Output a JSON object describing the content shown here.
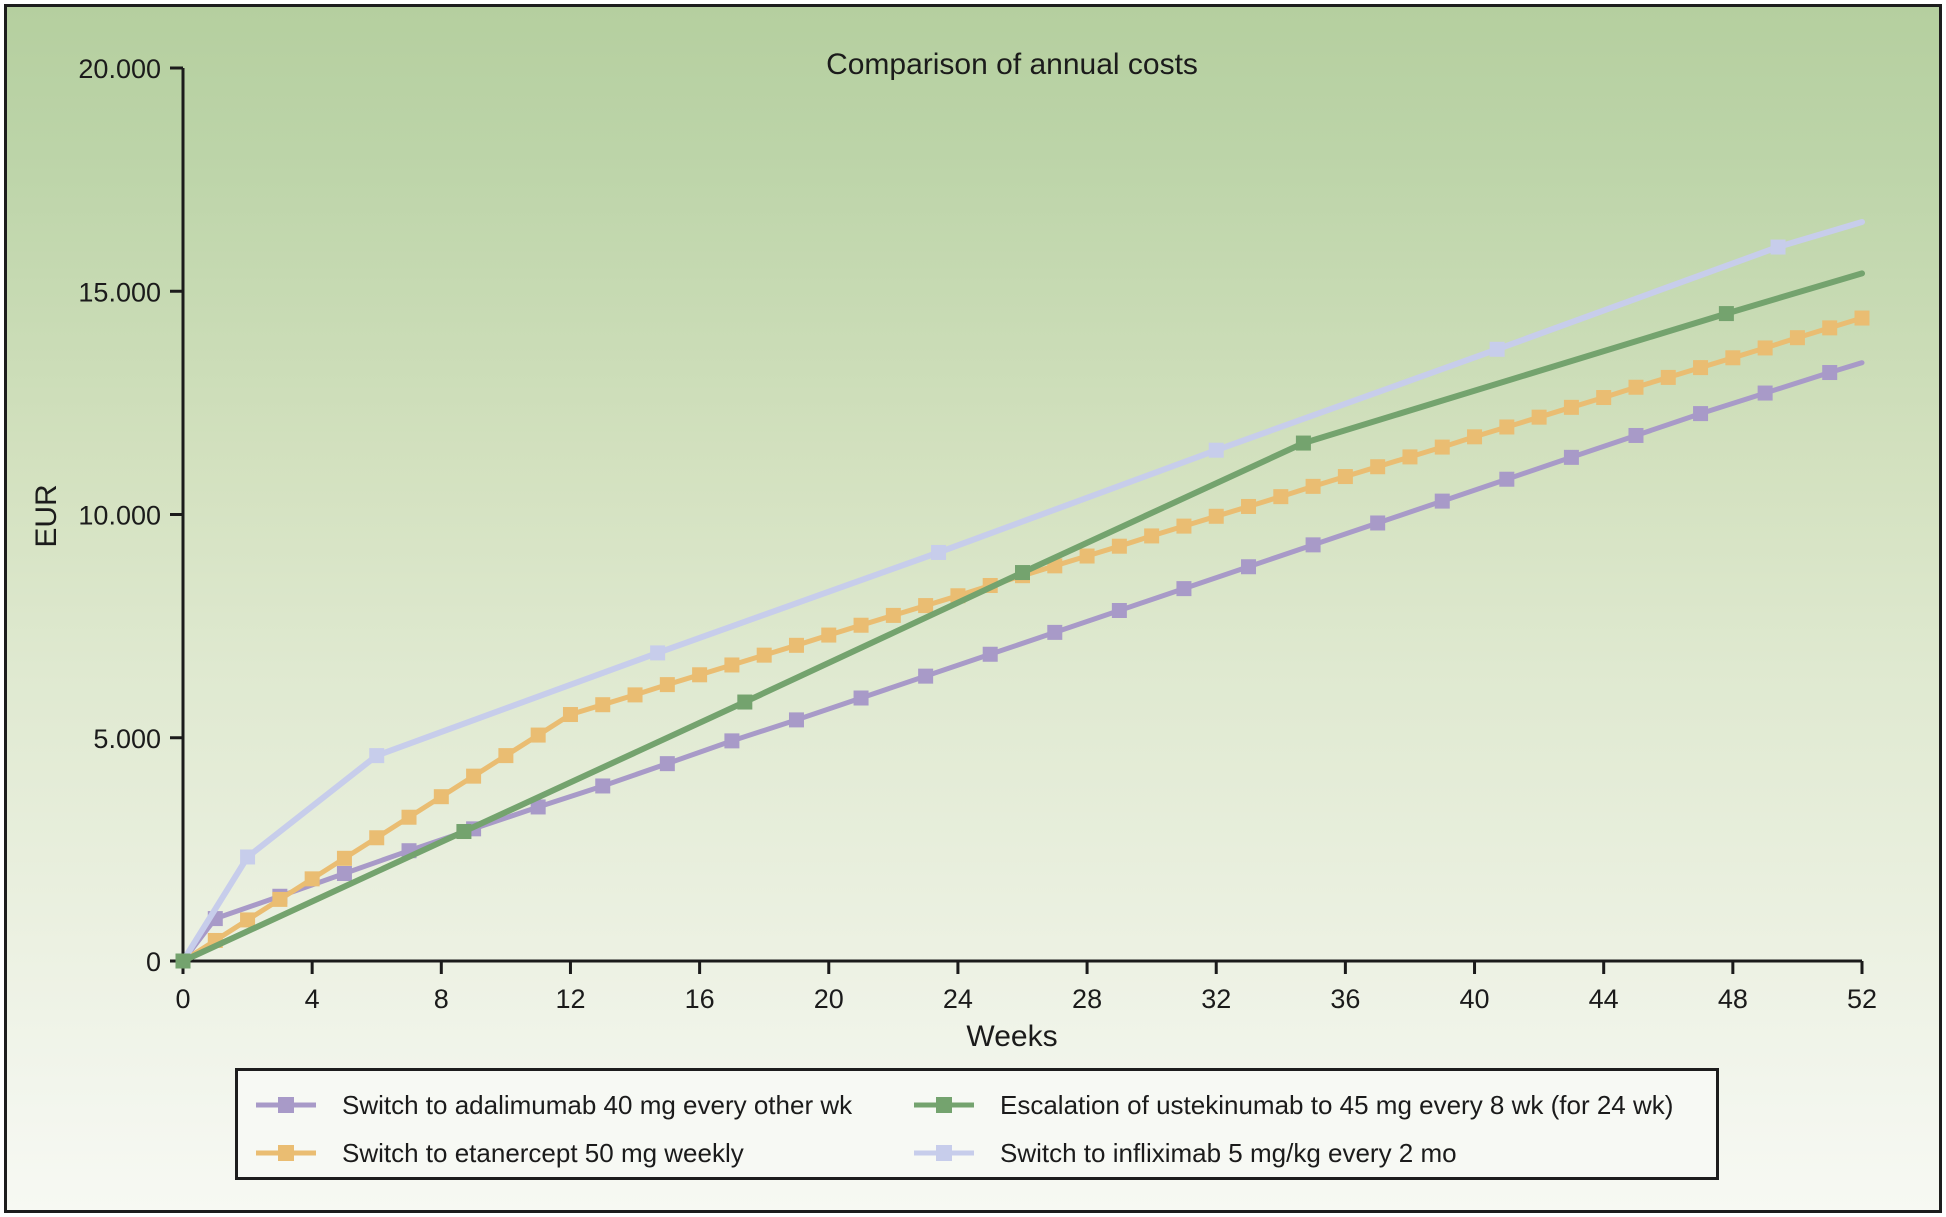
{
  "figure": {
    "title": "Comparison of annual costs",
    "xlabel": "Weeks",
    "ylabel": "EUR"
  },
  "colors": {
    "axis": "#1b1b1b",
    "text": "#1b1b1b",
    "frame_border": "#1d1d1d",
    "legend_background": "#f7f9f4",
    "background_top": "#b5cf9f",
    "background_bottom": "#f7f9f3",
    "adalimumab": "#a89ac8",
    "etanercept": "#eabd72",
    "ustekinumab": "#74a36e",
    "infliximab": "#c7cdeb"
  },
  "chart_data": {
    "type": "line",
    "title": "Comparison of annual costs",
    "xlabel": "Weeks",
    "ylabel": "EUR",
    "xlim": [
      0,
      52
    ],
    "ylim": [
      0,
      20000
    ],
    "grid": false,
    "legend_position": "bottom",
    "x_ticks": {
      "values": [
        0,
        4,
        8,
        12,
        16,
        20,
        24,
        28,
        32,
        36,
        40,
        44,
        48,
        52
      ],
      "labels": [
        "0",
        "4",
        "8",
        "12",
        "16",
        "20",
        "24",
        "28",
        "32",
        "36",
        "40",
        "44",
        "48",
        "52"
      ]
    },
    "y_ticks": {
      "values": [
        0,
        5000,
        10000,
        15000,
        20000
      ],
      "labels": [
        "0",
        "5.000",
        "10.000",
        "15.000",
        "20.000"
      ]
    },
    "draw_order": [
      0,
      1,
      3,
      2
    ],
    "series": [
      {
        "name": "adalimumab",
        "label": "Switch to adalimumab 40 mg every other wk",
        "color": "#a89ac8",
        "line_width": 5,
        "marker": "square",
        "points": [
          [
            0,
            0
          ],
          [
            1,
            950
          ],
          [
            3,
            1450
          ],
          [
            5,
            1960
          ],
          [
            7,
            2470
          ],
          [
            9,
            2960
          ],
          [
            11,
            3450
          ],
          [
            13,
            3920
          ],
          [
            15,
            4420
          ],
          [
            17,
            4930
          ],
          [
            19,
            5400
          ],
          [
            21,
            5890
          ],
          [
            23,
            6380
          ],
          [
            25,
            6870
          ],
          [
            27,
            7360
          ],
          [
            29,
            7850
          ],
          [
            31,
            8340
          ],
          [
            33,
            8830
          ],
          [
            35,
            9320
          ],
          [
            37,
            9810
          ],
          [
            39,
            10300
          ],
          [
            41,
            10790
          ],
          [
            43,
            11280
          ],
          [
            45,
            11770
          ],
          [
            47,
            12260
          ],
          [
            49,
            12720
          ],
          [
            51,
            13180
          ],
          [
            52,
            13400
          ]
        ],
        "markers": [
          [
            1,
            950
          ],
          [
            3,
            1450
          ],
          [
            5,
            1960
          ],
          [
            7,
            2470
          ],
          [
            9,
            2960
          ],
          [
            11,
            3450
          ],
          [
            13,
            3920
          ],
          [
            15,
            4420
          ],
          [
            17,
            4930
          ],
          [
            19,
            5400
          ],
          [
            21,
            5890
          ],
          [
            23,
            6380
          ],
          [
            25,
            6870
          ],
          [
            27,
            7360
          ],
          [
            29,
            7850
          ],
          [
            31,
            8340
          ],
          [
            33,
            8830
          ],
          [
            35,
            9320
          ],
          [
            37,
            9810
          ],
          [
            39,
            10300
          ],
          [
            41,
            10790
          ],
          [
            43,
            11280
          ],
          [
            45,
            11770
          ],
          [
            47,
            12260
          ],
          [
            49,
            12720
          ],
          [
            51,
            13180
          ]
        ]
      },
      {
        "name": "etanercept",
        "label": "Switch to etanercept 50 mg weekly",
        "color": "#eabd72",
        "line_width": 5,
        "marker": "square",
        "points": [
          [
            0,
            0
          ],
          [
            1,
            460
          ],
          [
            2,
            920
          ],
          [
            3,
            1380
          ],
          [
            4,
            1840
          ],
          [
            5,
            2300
          ],
          [
            6,
            2760
          ],
          [
            7,
            3220
          ],
          [
            8,
            3680
          ],
          [
            9,
            4140
          ],
          [
            10,
            4600
          ],
          [
            11,
            5060
          ],
          [
            12,
            5520
          ],
          [
            13,
            5740
          ],
          [
            14,
            5960
          ],
          [
            15,
            6190
          ],
          [
            16,
            6410
          ],
          [
            17,
            6630
          ],
          [
            18,
            6850
          ],
          [
            19,
            7070
          ],
          [
            20,
            7300
          ],
          [
            21,
            7520
          ],
          [
            22,
            7740
          ],
          [
            23,
            7960
          ],
          [
            24,
            8180
          ],
          [
            25,
            8410
          ],
          [
            26,
            8630
          ],
          [
            27,
            8850
          ],
          [
            28,
            9070
          ],
          [
            29,
            9290
          ],
          [
            30,
            9520
          ],
          [
            31,
            9740
          ],
          [
            32,
            9960
          ],
          [
            33,
            10180
          ],
          [
            34,
            10400
          ],
          [
            35,
            10630
          ],
          [
            36,
            10850
          ],
          [
            37,
            11070
          ],
          [
            38,
            11290
          ],
          [
            39,
            11510
          ],
          [
            40,
            11740
          ],
          [
            41,
            11960
          ],
          [
            42,
            12180
          ],
          [
            43,
            12400
          ],
          [
            44,
            12620
          ],
          [
            45,
            12850
          ],
          [
            46,
            13070
          ],
          [
            47,
            13290
          ],
          [
            48,
            13510
          ],
          [
            49,
            13730
          ],
          [
            50,
            13960
          ],
          [
            51,
            14180
          ],
          [
            52,
            14400
          ]
        ],
        "markers": [
          [
            1,
            460
          ],
          [
            2,
            920
          ],
          [
            3,
            1380
          ],
          [
            4,
            1840
          ],
          [
            5,
            2300
          ],
          [
            6,
            2760
          ],
          [
            7,
            3220
          ],
          [
            8,
            3680
          ],
          [
            9,
            4140
          ],
          [
            10,
            4600
          ],
          [
            11,
            5060
          ],
          [
            12,
            5520
          ],
          [
            13,
            5740
          ],
          [
            14,
            5960
          ],
          [
            15,
            6190
          ],
          [
            16,
            6410
          ],
          [
            17,
            6630
          ],
          [
            18,
            6850
          ],
          [
            19,
            7070
          ],
          [
            20,
            7300
          ],
          [
            21,
            7520
          ],
          [
            22,
            7740
          ],
          [
            23,
            7960
          ],
          [
            24,
            8180
          ],
          [
            25,
            8410
          ],
          [
            26,
            8630
          ],
          [
            27,
            8850
          ],
          [
            28,
            9070
          ],
          [
            29,
            9290
          ],
          [
            30,
            9520
          ],
          [
            31,
            9740
          ],
          [
            32,
            9960
          ],
          [
            33,
            10180
          ],
          [
            34,
            10400
          ],
          [
            35,
            10630
          ],
          [
            36,
            10850
          ],
          [
            37,
            11070
          ],
          [
            38,
            11290
          ],
          [
            39,
            11510
          ],
          [
            40,
            11740
          ],
          [
            41,
            11960
          ],
          [
            42,
            12180
          ],
          [
            43,
            12400
          ],
          [
            44,
            12620
          ],
          [
            45,
            12850
          ],
          [
            46,
            13070
          ],
          [
            47,
            13290
          ],
          [
            48,
            13510
          ],
          [
            49,
            13730
          ],
          [
            50,
            13960
          ],
          [
            51,
            14180
          ],
          [
            52,
            14400
          ]
        ]
      },
      {
        "name": "ustekinumab",
        "label": "Escalation of ustekinumab to 45 mg every 8 wk (for 24 wk)",
        "color": "#74a36e",
        "line_width": 6,
        "marker": "square",
        "points": [
          [
            0,
            0
          ],
          [
            8.7,
            2900
          ],
          [
            17.4,
            5800
          ],
          [
            26,
            8700
          ],
          [
            34.7,
            11600
          ],
          [
            47.8,
            14500
          ],
          [
            52,
            15400
          ]
        ],
        "markers": [
          [
            0,
            0
          ],
          [
            8.7,
            2900
          ],
          [
            17.4,
            5800
          ],
          [
            26,
            8700
          ],
          [
            34.7,
            11600
          ],
          [
            47.8,
            14500
          ]
        ]
      },
      {
        "name": "infliximab",
        "label": "Switch to infliximab 5 mg/kg every 2 mo",
        "color": "#c7cdeb",
        "line_width": 6,
        "marker": "square",
        "points": [
          [
            0,
            0
          ],
          [
            2,
            2330
          ],
          [
            6,
            4600
          ],
          [
            14.7,
            6900
          ],
          [
            23.4,
            9150
          ],
          [
            32,
            11440
          ],
          [
            40.7,
            13700
          ],
          [
            49.4,
            15990
          ],
          [
            52,
            16550
          ]
        ],
        "markers": [
          [
            2,
            2330
          ],
          [
            6,
            4600
          ],
          [
            14.7,
            6900
          ],
          [
            23.4,
            9150
          ],
          [
            32,
            11440
          ],
          [
            40.7,
            13700
          ],
          [
            49.4,
            15990
          ]
        ]
      }
    ]
  }
}
